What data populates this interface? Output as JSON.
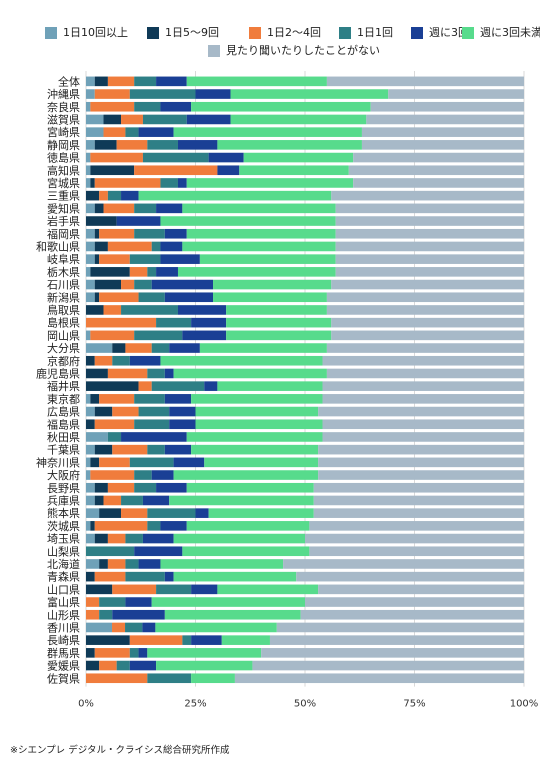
{
  "chart_data": {
    "type": "bar",
    "orientation": "horizontal",
    "stacked": true,
    "legend_position": "top",
    "xlim": [
      0,
      100
    ],
    "x_ticks": [
      "0%",
      "25%",
      "50%",
      "75%",
      "100%"
    ],
    "categories": [
      "全体",
      "沖縄県",
      "奈良県",
      "滋賀県",
      "宮崎県",
      "静岡県",
      "徳島県",
      "高知県",
      "宮城県",
      "三重県",
      "愛知県",
      "岩手県",
      "福岡県",
      "和歌山県",
      "岐阜県",
      "栃木県",
      "石川県",
      "新潟県",
      "鳥取県",
      "島根県",
      "岡山県",
      "大分県",
      "京都府",
      "鹿児島県",
      "福井県",
      "東京都",
      "広島県",
      "福島県",
      "秋田県",
      "千葉県",
      "神奈川県",
      "大阪府",
      "長野県",
      "兵庫県",
      "熊本県",
      "茨城県",
      "埼玉県",
      "山梨県",
      "北海道",
      "青森県",
      "山口県",
      "富山県",
      "山形県",
      "香川県",
      "長崎県",
      "群馬県",
      "愛媛県",
      "佐賀県"
    ],
    "series": [
      {
        "name": "1日10回以上",
        "color": "#6fa1b8",
        "values": [
          2,
          2,
          1,
          4,
          4,
          2,
          1,
          1,
          1,
          0,
          2,
          0,
          2,
          2,
          2,
          1,
          2,
          2,
          0,
          0,
          1,
          6,
          0,
          0,
          0,
          1,
          2,
          0,
          5,
          2,
          1,
          1,
          2,
          2,
          3,
          1,
          2,
          0,
          3,
          0,
          0,
          0,
          0,
          6,
          0,
          0,
          0,
          0
        ]
      },
      {
        "name": "1日5～9回",
        "color": "#0f3a57",
        "values": [
          3,
          0,
          0,
          4,
          0,
          5,
          0,
          10,
          1,
          3,
          2,
          7,
          1,
          3,
          1,
          9,
          6,
          1,
          4,
          0,
          0,
          3,
          2,
          5,
          12,
          2,
          4,
          2,
          0,
          4,
          2,
          0,
          3,
          2,
          5,
          1,
          3,
          0,
          2,
          2,
          6,
          0,
          0,
          0,
          10,
          2,
          3,
          0
        ]
      },
      {
        "name": "1日2～4回",
        "color": "#f07c3c",
        "values": [
          6,
          8,
          10,
          5,
          5,
          7,
          12,
          19,
          15,
          2,
          7,
          0,
          8,
          10,
          7,
          4,
          3,
          9,
          4,
          16,
          10,
          6,
          4,
          9,
          3,
          8,
          6,
          9,
          0,
          8,
          7,
          10,
          6,
          4,
          6,
          12,
          4,
          0,
          4,
          7,
          10,
          3,
          3,
          3,
          12,
          8,
          4,
          14
        ]
      },
      {
        "name": "1日1回",
        "color": "#2e7f86",
        "values": [
          5,
          15,
          6,
          10,
          3,
          7,
          15,
          0,
          4,
          3,
          5,
          0,
          7,
          2,
          7,
          2,
          4,
          6,
          13,
          8,
          11,
          4,
          4,
          4,
          12,
          7,
          7,
          8,
          3,
          4,
          10,
          4,
          5,
          5,
          11,
          3,
          4,
          11,
          3,
          9,
          8,
          6,
          3,
          4,
          2,
          2,
          3,
          10
        ]
      },
      {
        "name": "週に3回",
        "color": "#1a3f95",
        "values": [
          7,
          8,
          7,
          10,
          8,
          9,
          8,
          5,
          2,
          4,
          6,
          10,
          5,
          5,
          9,
          5,
          14,
          11,
          11,
          8,
          10,
          7,
          7,
          2,
          3,
          6,
          6,
          6,
          15,
          6,
          7,
          5,
          7,
          6,
          3,
          6,
          7,
          11,
          5,
          2,
          6,
          6,
          12,
          3,
          7,
          2,
          6,
          0
        ]
      },
      {
        "name": "週に3回未満",
        "color": "#57db8c",
        "values": [
          32,
          36,
          41,
          31,
          43,
          33,
          25,
          25,
          38,
          44,
          35,
          40,
          34,
          35,
          31,
          36,
          27,
          26,
          23,
          24,
          24,
          29,
          37,
          35,
          24,
          30,
          28,
          29,
          31,
          29,
          26,
          33,
          29,
          33,
          24,
          28,
          30,
          29,
          28,
          28,
          23,
          35,
          31,
          28,
          11,
          26,
          22,
          10
        ]
      },
      {
        "name": "見たり聞いたりしたことがない",
        "color": "#a7b9c8",
        "values": [
          45,
          31,
          35,
          36,
          37,
          37,
          39,
          40,
          39,
          44,
          43,
          43,
          43,
          43,
          43,
          43,
          44,
          45,
          45,
          44,
          44,
          45,
          46,
          45,
          46,
          46,
          47,
          46,
          46,
          47,
          47,
          47,
          48,
          48,
          48,
          49,
          50,
          49,
          55,
          52,
          47,
          50,
          51,
          57,
          58,
          60,
          62,
          66
        ]
      }
    ]
  },
  "footnote": "※シエンプレ デジタル・クライシス総合研究所作成"
}
